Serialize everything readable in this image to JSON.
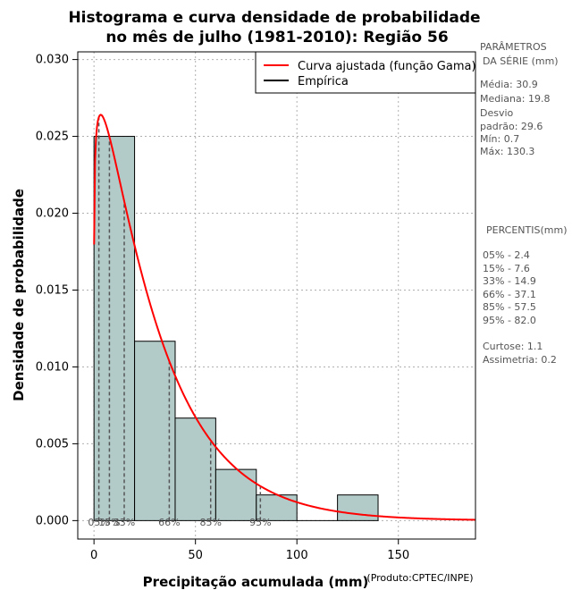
{
  "chart_data": {
    "type": "histogram",
    "title_line1": "Histograma e curva densidade de probabilidade",
    "title_line2": "no mês de julho (1981-2010): Região 56",
    "xlabel": "Precipitação acumulada (mm)",
    "ylabel": "Densidade de probabilidade",
    "credit": "(Produto:CPTEC/INPE)",
    "xlim": [
      -8,
      188
    ],
    "ylim": [
      -0.0012,
      0.0305
    ],
    "xticks": [
      0,
      50,
      100,
      150
    ],
    "xtick_labels": [
      "0",
      "50",
      "100",
      "150"
    ],
    "yticks": [
      0.0,
      0.005,
      0.01,
      0.015,
      0.02,
      0.025,
      0.03
    ],
    "ytick_labels": [
      "0.000",
      "0.005",
      "0.010",
      "0.015",
      "0.020",
      "0.025",
      "0.030"
    ],
    "bins": [
      {
        "start": 0,
        "end": 20,
        "density": 0.025
      },
      {
        "start": 20,
        "end": 40,
        "density": 0.01167
      },
      {
        "start": 40,
        "end": 60,
        "density": 0.00667
      },
      {
        "start": 60,
        "end": 80,
        "density": 0.00333
      },
      {
        "start": 80,
        "end": 100,
        "density": 0.00167
      },
      {
        "start": 100,
        "end": 120,
        "density": 0.0
      },
      {
        "start": 120,
        "end": 140,
        "density": 0.00167
      }
    ],
    "gamma_fit": {
      "shape": 1.12,
      "scale": 27.6
    },
    "percentile_markers": [
      {
        "label": "05%",
        "value": 2.4
      },
      {
        "label": "15%",
        "value": 7.6
      },
      {
        "label": "33%",
        "value": 14.9
      },
      {
        "label": "66%",
        "value": 37.1
      },
      {
        "label": "85%",
        "value": 57.5
      },
      {
        "label": "95%",
        "value": 82.0
      }
    ],
    "legend": [
      {
        "label": "Curva ajustada (função Gama)",
        "color": "#ff0000"
      },
      {
        "label": "Empírica",
        "color": "#000000"
      }
    ],
    "colors": {
      "bar_fill": "#b2cbc9",
      "curve": "#ff0000",
      "grid": "#b0b0b0",
      "marker": "#555555"
    }
  },
  "side_panel": {
    "params_title_1": "PARÂMETROS",
    "params_title_2": "DA SÉRIE (mm)",
    "media": "Média:  30.9",
    "mediana": "Mediana:  19.8",
    "desvio_1": "Desvio",
    "desvio_2": "padrão:  29.6",
    "min": "Mín:  0.7",
    "max": "Máx:  130.3",
    "percentis_title": "PERCENTIS(mm)",
    "p05": "05% -  2.4",
    "p15": "15% -  7.6",
    "p33": "33% -  14.9",
    "p66": "66% -  37.1",
    "p85": "85% -  57.5",
    "p95": "95% -  82.0",
    "curtose": "Curtose:  1.1",
    "assimetria": "Assimetria:  0.2"
  }
}
